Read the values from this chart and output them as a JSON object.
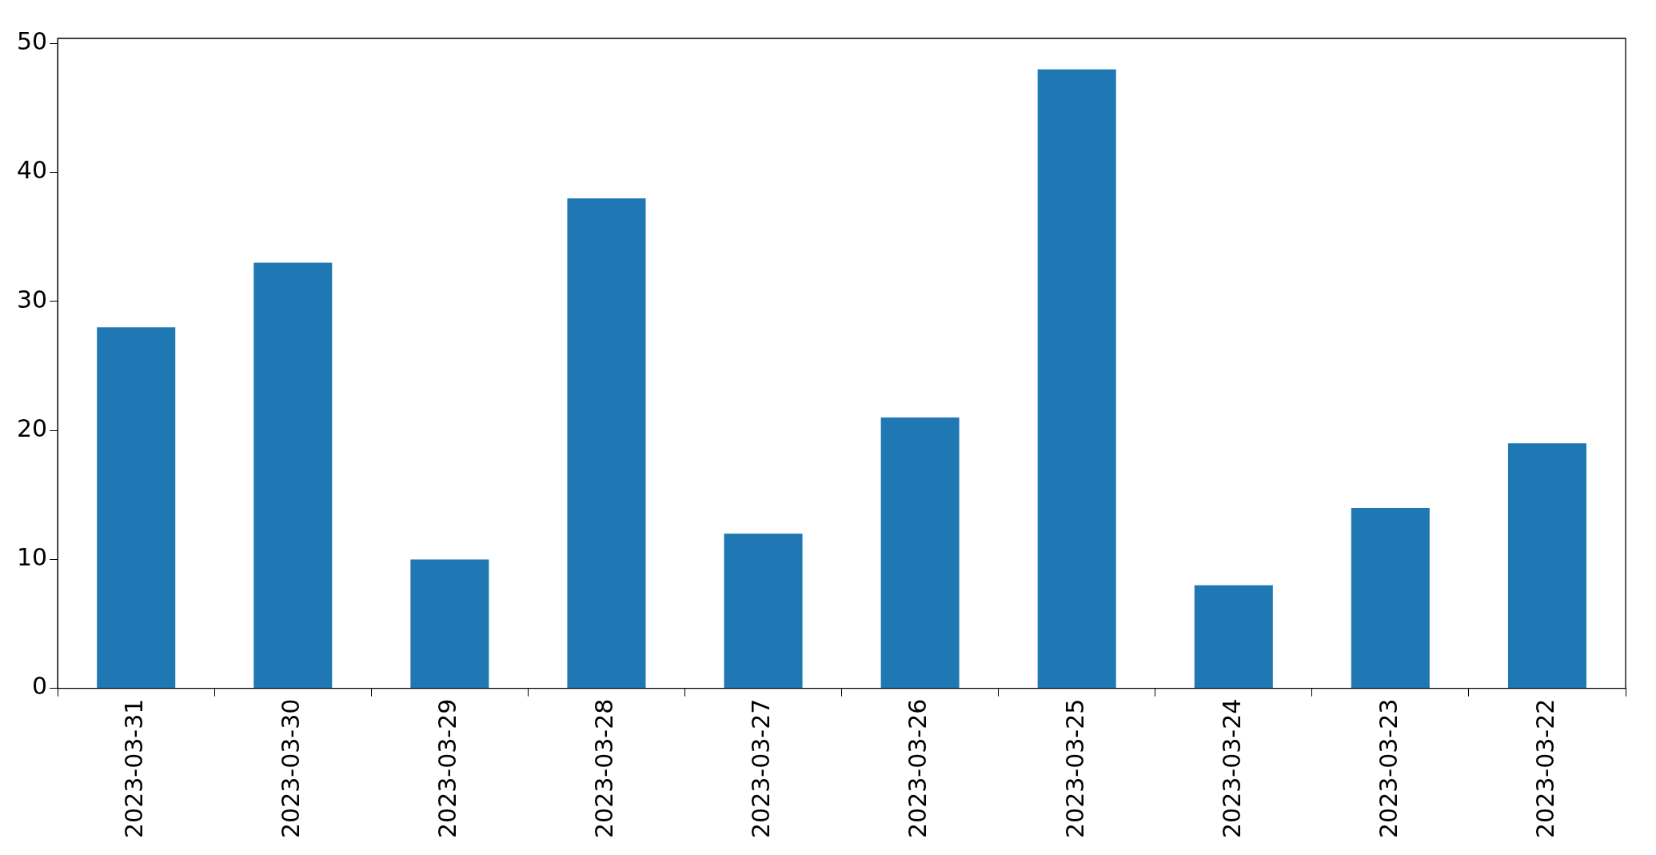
{
  "chart_data": {
    "type": "bar",
    "categories": [
      "2023-03-31",
      "2023-03-30",
      "2023-03-29",
      "2023-03-28",
      "2023-03-27",
      "2023-03-26",
      "2023-03-25",
      "2023-03-24",
      "2023-03-23",
      "2023-03-22"
    ],
    "values": [
      28,
      33,
      10,
      38,
      12,
      21,
      48,
      8,
      14,
      19
    ],
    "color": "#1f77b4",
    "ylim": [
      0,
      50.4
    ],
    "yticks": [
      0,
      10,
      20,
      30,
      40,
      50
    ],
    "grid": false,
    "legend": false
  }
}
